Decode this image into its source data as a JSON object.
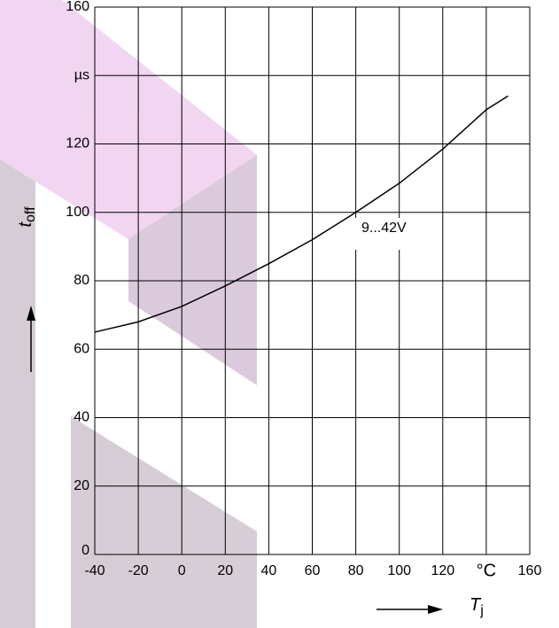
{
  "chart_data": {
    "type": "line",
    "x": [
      -40,
      -20,
      0,
      20,
      40,
      60,
      80,
      100,
      120,
      140,
      150
    ],
    "series": [
      {
        "name": "9...42V",
        "color": "#000000",
        "values": [
          65,
          68,
          72.5,
          78.5,
          85,
          92,
          100,
          108.5,
          118.5,
          130,
          134
        ]
      }
    ],
    "xlim": [
      -40,
      160
    ],
    "xticks": [
      -40,
      -20,
      0,
      20,
      40,
      60,
      80,
      100,
      120,
      {
        "value": 140,
        "label": "°C"
      },
      160
    ],
    "ylim": [
      0,
      160
    ],
    "yticks": [
      0,
      20,
      40,
      60,
      80,
      100,
      120,
      {
        "value": 140,
        "label": "µs"
      },
      160
    ],
    "x_label": "T",
    "x_label_sub": "j",
    "y_label": "t",
    "y_label_sub": "off",
    "grid": true
  }
}
